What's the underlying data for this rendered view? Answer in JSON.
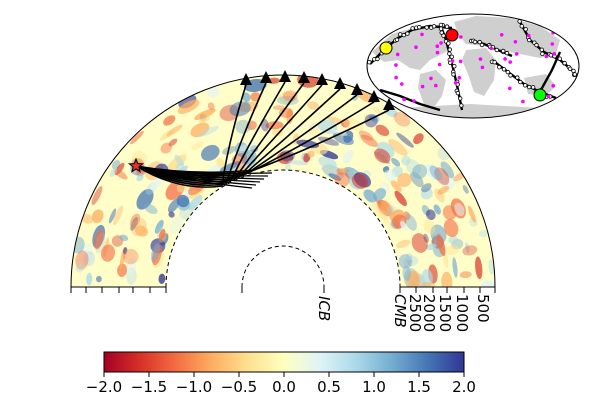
{
  "depth_labels": [
    "500",
    "1000",
    "1500",
    "2000",
    "2500"
  ],
  "boundary_labels": {
    "cmb": "CMB",
    "icb": "ICB"
  },
  "colorbar": {
    "min": -2.0,
    "max": 2.0,
    "tick_values": [
      -2.0,
      -1.5,
      -1.0,
      -0.5,
      0.0,
      0.5,
      1.0,
      1.5,
      2.0
    ],
    "tick_labels": [
      "−2.0",
      "−1.5",
      "−1.0",
      "−0.5",
      "0.0",
      "0.5",
      "1.0",
      "1.5",
      "2.0"
    ],
    "colormap": "RdYlBu",
    "colors": [
      "#a50026",
      "#d73027",
      "#f46d43",
      "#fdae61",
      "#fee090",
      "#ffffbf",
      "#e0f3f8",
      "#abd9e9",
      "#74add1",
      "#4575b4",
      "#313695"
    ]
  },
  "marker_colors": {
    "event": "#e03030",
    "receiver": "#000000",
    "map_yellow": "#ffff00",
    "map_red": "#ff0000",
    "map_green": "#00ff00",
    "hotspots": "#ff00ff"
  }
}
